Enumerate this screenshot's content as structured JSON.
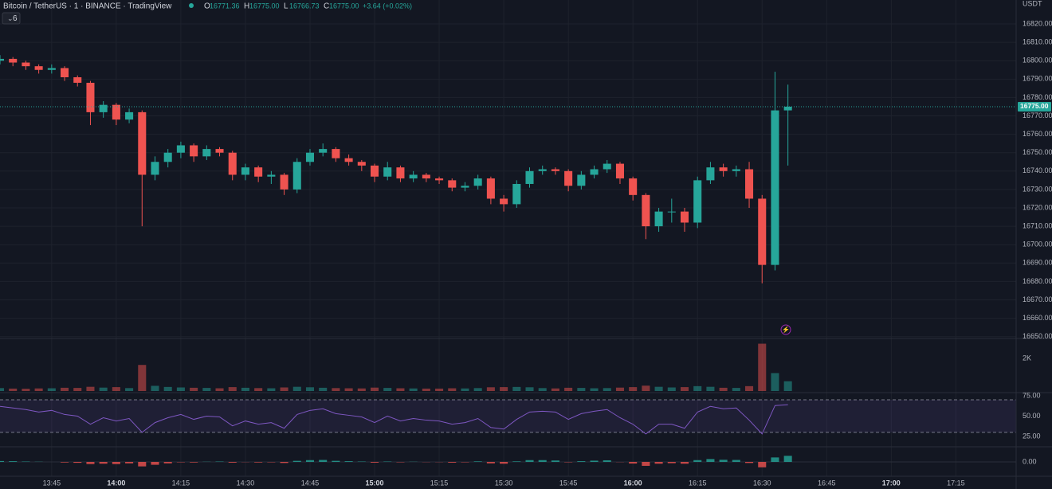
{
  "chart_data": {
    "type": "candlestick",
    "title": "Bitcoin / TetherUS · 1 · BINANCE · TradingView",
    "legend": [
      {
        "key": "O",
        "value": "16771.36"
      },
      {
        "key": "H",
        "value": "16775.00"
      },
      {
        "key": "L",
        "value": "16766.73"
      },
      {
        "key": "C",
        "value": "16775.00"
      }
    ],
    "change": "+3.64 (+0.02%)",
    "currency": "USDT",
    "indicator_count": "6",
    "up_color": "#26a69a",
    "down_color": "#ef5350",
    "rsi_color": "#7e57c2",
    "grid": true,
    "x": [
      "13:33",
      "13:36",
      "13:39",
      "13:42",
      "13:45",
      "13:48",
      "13:51",
      "13:54",
      "13:57",
      "14:00",
      "14:03",
      "14:06",
      "14:09",
      "14:12",
      "14:15",
      "14:18",
      "14:21",
      "14:24",
      "14:27",
      "14:30",
      "14:33",
      "14:36",
      "14:39",
      "14:42",
      "14:45",
      "14:48",
      "14:51",
      "14:54",
      "14:57",
      "15:00",
      "15:03",
      "15:06",
      "15:09",
      "15:12",
      "15:15",
      "15:18",
      "15:21",
      "15:24",
      "15:27",
      "15:30",
      "15:33",
      "15:36",
      "15:39",
      "15:42",
      "15:45",
      "15:48",
      "15:51",
      "15:54",
      "15:57",
      "16:00",
      "16:03",
      "16:06",
      "16:09",
      "16:12",
      "16:15",
      "16:18",
      "16:21",
      "16:24",
      "16:27",
      "16:30",
      "16:33",
      "16:36"
    ],
    "xlim": [
      "13:33",
      "17:29"
    ],
    "xticks": [
      "13:45",
      "14:00",
      "14:15",
      "14:30",
      "14:45",
      "15:00",
      "15:15",
      "15:30",
      "15:45",
      "16:00",
      "16:15",
      "16:30",
      "16:45",
      "17:00",
      "17:15"
    ],
    "ohlc": [
      [
        16800,
        16803,
        16798,
        16801
      ],
      [
        16801,
        16802,
        16797,
        16799
      ],
      [
        16799,
        16800,
        16795,
        16797
      ],
      [
        16797,
        16798,
        16793,
        16795
      ],
      [
        16795,
        16798,
        16793,
        16796
      ],
      [
        16796,
        16797,
        16789,
        16791
      ],
      [
        16791,
        16792,
        16786,
        16788
      ],
      [
        16788,
        16789,
        16765,
        16772
      ],
      [
        16772,
        16778,
        16769,
        16776
      ],
      [
        16776,
        16777,
        16765,
        16768
      ],
      [
        16768,
        16774,
        16766,
        16772
      ],
      [
        16772,
        16773,
        16710,
        16738
      ],
      [
        16738,
        16748,
        16735,
        16745
      ],
      [
        16745,
        16752,
        16742,
        16750
      ],
      [
        16750,
        16756,
        16747,
        16754
      ],
      [
        16754,
        16755,
        16745,
        16748
      ],
      [
        16748,
        16754,
        16746,
        16752
      ],
      [
        16752,
        16753,
        16748,
        16750
      ],
      [
        16750,
        16751,
        16735,
        16738
      ],
      [
        16738,
        16744,
        16735,
        16742
      ],
      [
        16742,
        16743,
        16734,
        16737
      ],
      [
        16737,
        16740,
        16733,
        16738
      ],
      [
        16738,
        16739,
        16727,
        16730
      ],
      [
        16730,
        16747,
        16728,
        16745
      ],
      [
        16745,
        16752,
        16743,
        16750
      ],
      [
        16750,
        16755,
        16748,
        16752
      ],
      [
        16752,
        16753,
        16745,
        16747
      ],
      [
        16747,
        16749,
        16743,
        16745
      ],
      [
        16745,
        16746,
        16740,
        16743
      ],
      [
        16743,
        16744,
        16734,
        16737
      ],
      [
        16737,
        16745,
        16735,
        16742
      ],
      [
        16742,
        16743,
        16734,
        16736
      ],
      [
        16736,
        16740,
        16734,
        16738
      ],
      [
        16738,
        16739,
        16734,
        16736
      ],
      [
        16736,
        16737,
        16733,
        16735
      ],
      [
        16735,
        16736,
        16729,
        16731
      ],
      [
        16731,
        16734,
        16729,
        16732
      ],
      [
        16732,
        16738,
        16730,
        16736
      ],
      [
        16736,
        16737,
        16722,
        16725
      ],
      [
        16725,
        16727,
        16718,
        16722
      ],
      [
        16722,
        16735,
        16720,
        16733
      ],
      [
        16733,
        16742,
        16731,
        16740
      ],
      [
        16740,
        16743,
        16738,
        16741
      ],
      [
        16741,
        16742,
        16738,
        16740
      ],
      [
        16740,
        16741,
        16729,
        16732
      ],
      [
        16732,
        16740,
        16730,
        16738
      ],
      [
        16738,
        16743,
        16736,
        16741
      ],
      [
        16741,
        16746,
        16739,
        16744
      ],
      [
        16744,
        16745,
        16733,
        16736
      ],
      [
        16736,
        16737,
        16724,
        16727
      ],
      [
        16727,
        16728,
        16703,
        16710
      ],
      [
        16710,
        16720,
        16707,
        16718
      ],
      [
        16718,
        16725,
        16712,
        16718
      ],
      [
        16718,
        16720,
        16707,
        16712
      ],
      [
        16712,
        16737,
        16709,
        16735
      ],
      [
        16735,
        16745,
        16733,
        16742
      ],
      [
        16742,
        16744,
        16737,
        16740
      ],
      [
        16740,
        16743,
        16737,
        16741
      ],
      [
        16741,
        16745,
        16720,
        16725
      ],
      [
        16725,
        16727,
        16679,
        16689
      ],
      [
        16689,
        16794,
        16686,
        16773
      ],
      [
        16773,
        16787,
        16743,
        16775
      ]
    ],
    "ylim": [
      16649,
      16833
    ],
    "yticks": [
      {
        "value": 16650,
        "label": "16650.00"
      },
      {
        "value": 16660,
        "label": "16660.00"
      },
      {
        "value": 16670,
        "label": "16670.00"
      },
      {
        "value": 16680,
        "label": "16680.00"
      },
      {
        "value": 16690,
        "label": "16690.00"
      },
      {
        "value": 16700,
        "label": "16700.00"
      },
      {
        "value": 16710,
        "label": "16710.00"
      },
      {
        "value": 16720,
        "label": "16720.00"
      },
      {
        "value": 16730,
        "label": "16730.00"
      },
      {
        "value": 16740,
        "label": "16740.00"
      },
      {
        "value": 16750,
        "label": "16750.00"
      },
      {
        "value": 16760,
        "label": "16760.00"
      },
      {
        "value": 16770,
        "label": "16770.00"
      },
      {
        "value": 16780,
        "label": "16780.00"
      },
      {
        "value": 16790,
        "label": "16790.00"
      },
      {
        "value": 16800,
        "label": "16800.00"
      },
      {
        "value": 16810,
        "label": "16810.00"
      },
      {
        "value": 16820,
        "label": "16820.00"
      }
    ],
    "last_price": {
      "value": 16775,
      "label": "16775.00"
    },
    "volume": [
      180,
      150,
      140,
      160,
      170,
      200,
      190,
      260,
      210,
      240,
      180,
      1600,
      320,
      250,
      220,
      200,
      190,
      170,
      240,
      200,
      180,
      170,
      220,
      260,
      230,
      200,
      180,
      170,
      160,
      210,
      190,
      170,
      160,
      150,
      150,
      170,
      160,
      180,
      230,
      240,
      250,
      230,
      180,
      160,
      200,
      190,
      170,
      180,
      210,
      240,
      330,
      260,
      220,
      240,
      300,
      260,
      200,
      190,
      300,
      2900,
      1100,
      600
    ],
    "volume_ylim": [
      0,
      3220
    ],
    "volume_yticks": [
      {
        "value": 2000,
        "label": "2K"
      }
    ],
    "rsi": [
      62,
      60,
      58,
      55,
      57,
      52,
      50,
      40,
      48,
      44,
      47,
      30,
      42,
      48,
      52,
      46,
      50,
      49,
      38,
      44,
      40,
      42,
      35,
      52,
      57,
      59,
      53,
      51,
      49,
      42,
      50,
      44,
      47,
      45,
      44,
      40,
      42,
      47,
      36,
      34,
      46,
      55,
      56,
      55,
      46,
      53,
      56,
      58,
      48,
      40,
      28,
      40,
      40,
      35,
      55,
      62,
      59,
      60,
      45,
      28,
      63,
      64
    ],
    "rsi_ylim": [
      13.2,
      77.9
    ],
    "rsi_band": [
      30,
      70
    ],
    "rsi_yticks": [
      {
        "value": 75,
        "label": "75.00"
      },
      {
        "value": 50,
        "label": "50.00"
      },
      {
        "value": 25,
        "label": "25.00"
      }
    ],
    "macd_hist": [
      0.5,
      0.4,
      0.2,
      0.1,
      0,
      -0.3,
      -0.5,
      -1.2,
      -1,
      -1.2,
      -0.8,
      -2.5,
      -1.6,
      -0.8,
      -0.2,
      -0.3,
      0.1,
      0.2,
      -0.4,
      -0.1,
      -0.3,
      -0.2,
      -0.6,
      0.6,
      1,
      1.1,
      0.6,
      0.4,
      0.2,
      -0.4,
      0.2,
      -0.2,
      0.1,
      -0.1,
      -0.1,
      -0.4,
      -0.2,
      0.3,
      -0.8,
      -1,
      0.3,
      1,
      1,
      0.8,
      -0.2,
      0.4,
      0.7,
      0.9,
      -0.1,
      -0.9,
      -2.2,
      -1,
      -0.7,
      -1,
      1,
      1.6,
      1.2,
      1.1,
      -0.6,
      -3,
      2.5,
      3.4
    ],
    "macd_ylim": [
      -8,
      8
    ],
    "macd_yticks": [
      {
        "value": 0,
        "label": "0.00"
      }
    ]
  }
}
